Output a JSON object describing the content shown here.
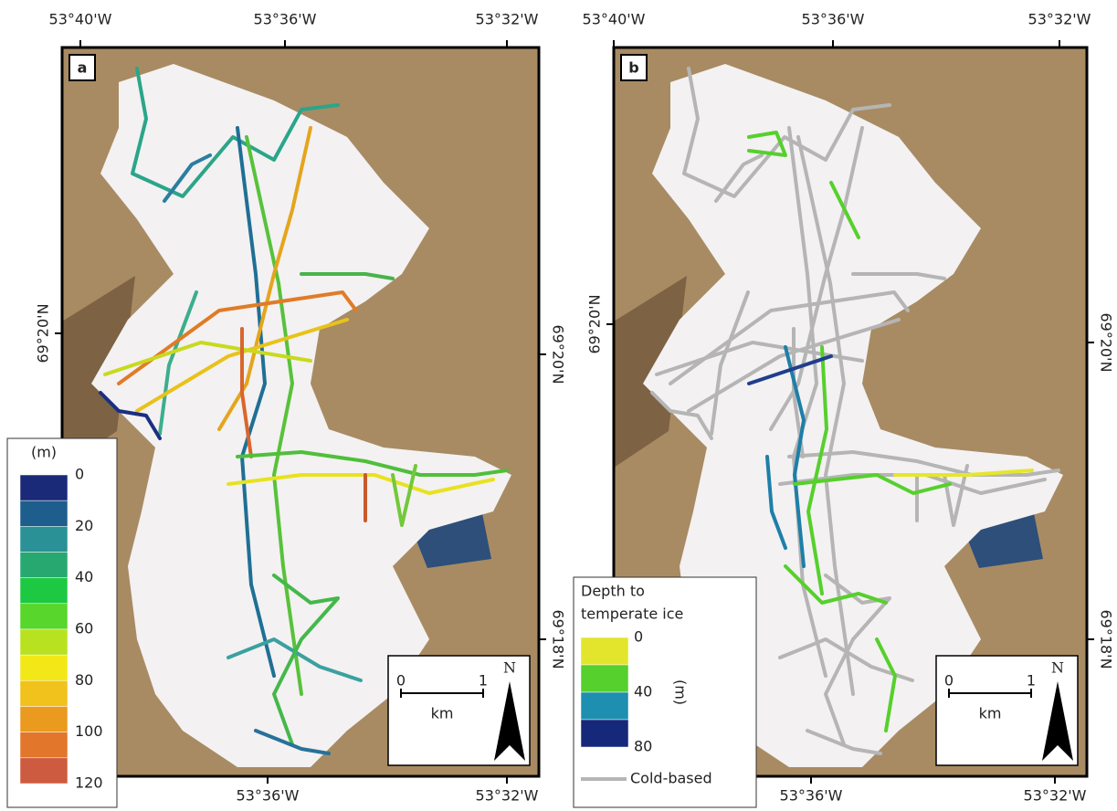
{
  "panels": [
    {
      "label": "a",
      "top_labels": [
        "53°40'W",
        "53°36'W",
        "53°32'W"
      ],
      "bottom_labels": [
        "53°36'W",
        "53°32'W"
      ],
      "left_labels": [
        "69°20'N"
      ],
      "right_labels": [
        "69°20'N",
        "69°18'N"
      ],
      "scale": {
        "start": "0",
        "end": "1",
        "unit": "km",
        "north": "N"
      }
    },
    {
      "label": "b",
      "top_labels": [
        "53°40'W",
        "53°36'W",
        "53°32'W"
      ],
      "bottom_labels": [
        "53°36'W",
        "53°32'W"
      ],
      "left_labels": [
        "69°20'N"
      ],
      "right_labels": [
        "69°20'N",
        "69°18'N"
      ],
      "scale": {
        "start": "0",
        "end": "1",
        "unit": "km",
        "north": "N"
      }
    }
  ],
  "legend_a": {
    "unit": "(m)",
    "ticks": [
      0,
      20,
      40,
      60,
      80,
      100,
      120
    ]
  },
  "legend_b": {
    "title_lines": [
      "Depth to",
      "temperate ice"
    ],
    "unit": "(m)",
    "ticks": [
      0,
      40,
      80
    ],
    "cold_label": "Cold-based"
  }
}
